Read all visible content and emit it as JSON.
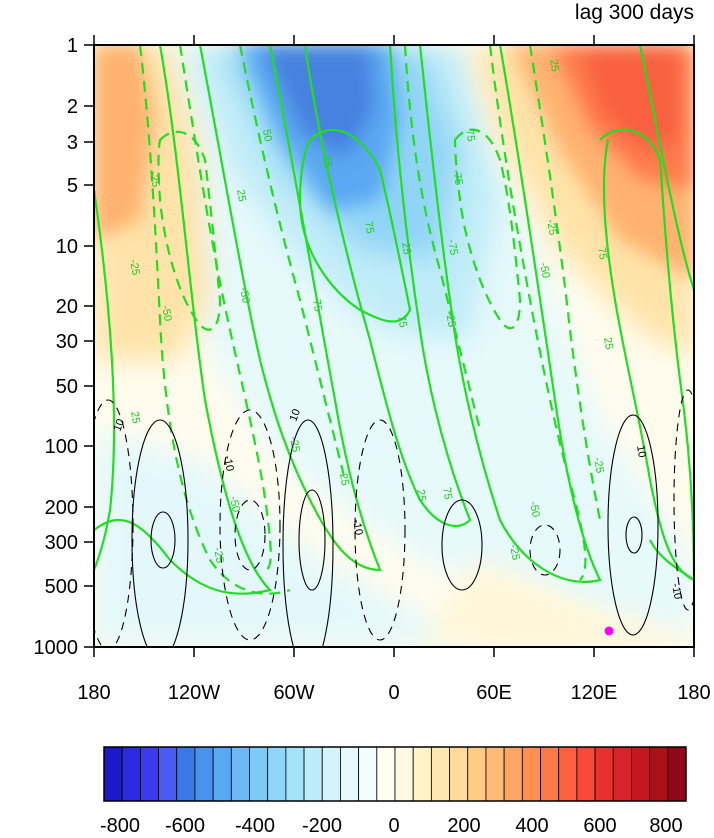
{
  "chart_data": {
    "type": "heatmap",
    "title": "lag 300 days",
    "xlabel": "",
    "ylabel": "",
    "x_ticks": [
      "180",
      "120W",
      "60W",
      "0",
      "60E",
      "120E",
      "180"
    ],
    "x_range": [
      -180,
      180
    ],
    "y_ticks": [
      "1",
      "2",
      "3",
      "5",
      "10",
      "20",
      "30",
      "50",
      "100",
      "200",
      "300",
      "500",
      "1000"
    ],
    "y_tick_values": [
      1,
      2,
      3,
      5,
      10,
      20,
      30,
      50,
      100,
      200,
      300,
      500,
      1000
    ],
    "y_range": [
      1,
      1000
    ],
    "y_scale": "log",
    "y_reversed": true,
    "colorbar": {
      "min": -800,
      "max": 800,
      "step": 50,
      "tick_labels": [
        "-800",
        "-600",
        "-400",
        "-200",
        "0",
        "200",
        "400",
        "600",
        "800"
      ],
      "tick_values": [
        -800,
        -600,
        -400,
        -200,
        0,
        200,
        400,
        600,
        800
      ],
      "colors": [
        "#1a1ac8",
        "#2a2ae0",
        "#3a3af0",
        "#4a5af5",
        "#3a78e6",
        "#4a92ee",
        "#5aa8f2",
        "#6cb8f5",
        "#7ecaf6",
        "#90d6f8",
        "#a4e2f8",
        "#bcecfa",
        "#d4f4fb",
        "#e6fafb",
        "#f2fdfd",
        "#fffef0",
        "#fff9e0",
        "#fff3c8",
        "#ffe8b0",
        "#ffdb98",
        "#ffcc86",
        "#ffba74",
        "#ffa662",
        "#ff9050",
        "#ff7848",
        "#ff6040",
        "#f84838",
        "#e83030",
        "#d82428",
        "#c41820",
        "#aa1018",
        "#900818"
      ]
    },
    "shaded_field": [
      {
        "name": "positive",
        "sign": "+",
        "lon": 150,
        "p": 1.5,
        "value": 550
      },
      {
        "name": "positive",
        "sign": "+",
        "lon": -175,
        "p": 2.5,
        "value": 320
      },
      {
        "name": "negative",
        "sign": "-",
        "lon": -40,
        "p": 1.5,
        "value": -500
      },
      {
        "name": "positive",
        "sign": "+",
        "lon": 60,
        "p": 800,
        "value": 40
      },
      {
        "name": "negative",
        "sign": "-",
        "lon": -170,
        "p": 400,
        "value": -30
      }
    ],
    "green_contour_labels": [
      "25",
      "-25",
      "50",
      "-50",
      "75",
      "-75"
    ],
    "black_contour_labels": [
      "10",
      "-10"
    ],
    "marker": {
      "lon": 130,
      "p": 880,
      "color": "#ff00ff"
    }
  }
}
